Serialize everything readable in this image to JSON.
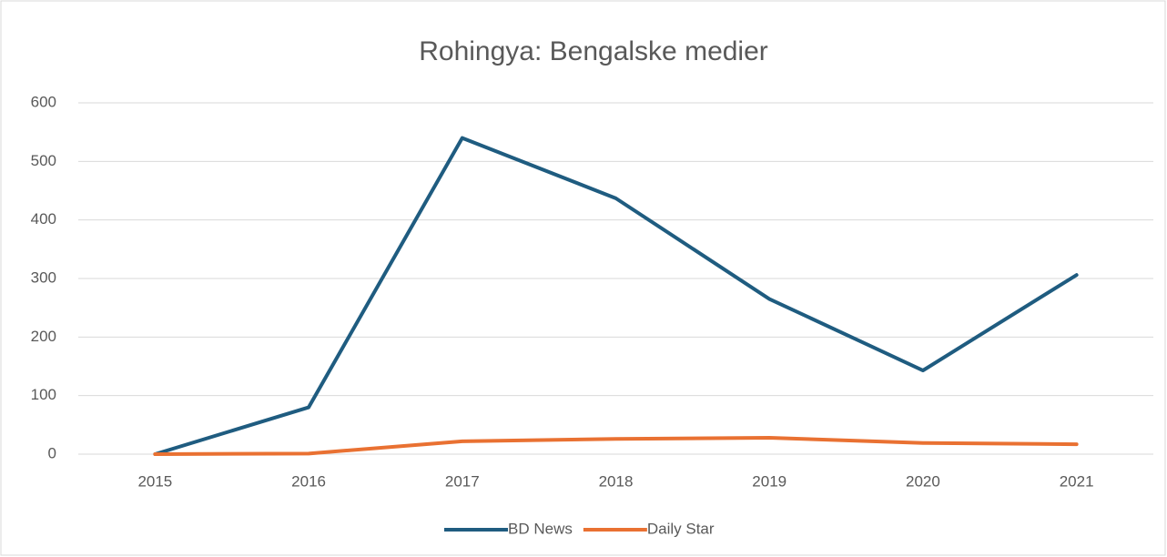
{
  "chart_data": {
    "type": "line",
    "title": "Rohingya: Bengalske medier",
    "categories": [
      "2015",
      "2016",
      "2017",
      "2018",
      "2019",
      "2020",
      "2021"
    ],
    "series": [
      {
        "name": "BD News",
        "color": "#1f5c80",
        "values": [
          0,
          80,
          540,
          437,
          265,
          143,
          306
        ]
      },
      {
        "name": "Daily Star",
        "color": "#e97132",
        "values": [
          0,
          1,
          22,
          26,
          28,
          19,
          17
        ]
      }
    ],
    "ylim": [
      0,
      600
    ],
    "yticks": [
      0,
      100,
      200,
      300,
      400,
      500,
      600
    ],
    "grid": true,
    "legend": "bottom"
  }
}
